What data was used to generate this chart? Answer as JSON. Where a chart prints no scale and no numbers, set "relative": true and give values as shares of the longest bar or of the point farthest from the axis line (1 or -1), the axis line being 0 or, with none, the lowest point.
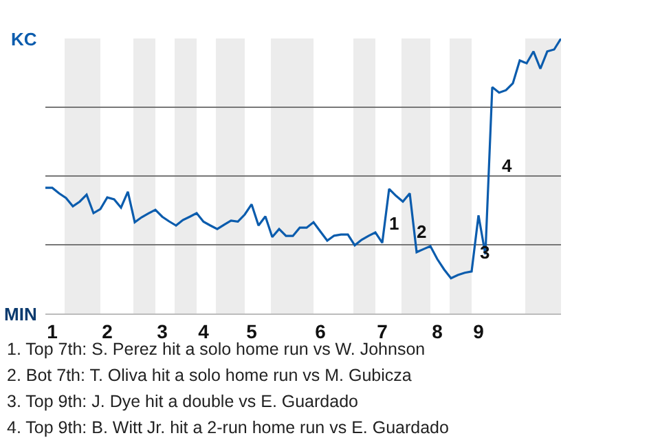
{
  "chart_data": {
    "type": "line",
    "relative": true,
    "categories": [
      null,
      "1",
      null,
      null,
      null,
      null,
      null,
      null,
      null,
      "2",
      null,
      null,
      null,
      null,
      null,
      null,
      null,
      "3",
      null,
      null,
      null,
      null,
      null,
      "4",
      null,
      null,
      null,
      null,
      null,
      null,
      "5",
      null,
      null,
      null,
      null,
      null,
      null,
      null,
      null,
      null,
      "6",
      null,
      null,
      null,
      null,
      null,
      null,
      null,
      null,
      "7",
      null,
      null,
      null,
      null,
      null,
      null,
      null,
      "8",
      null,
      null,
      null,
      null,
      null,
      "9",
      null,
      null,
      null,
      null,
      null,
      null,
      null,
      null,
      null,
      null,
      null,
      null
    ],
    "series": [
      {
        "color": "#0b5cad",
        "values": [
          0.457,
          0.457,
          0.437,
          0.42,
          0.39,
          0.407,
          0.432,
          0.365,
          0.38,
          0.422,
          0.415,
          0.385,
          0.443,
          0.332,
          0.35,
          0.364,
          0.377,
          0.352,
          0.335,
          0.32,
          0.34,
          0.352,
          0.365,
          0.334,
          0.32,
          0.307,
          0.323,
          0.338,
          0.334,
          0.36,
          0.397,
          0.32,
          0.353,
          0.278,
          0.307,
          0.282,
          0.282,
          0.312,
          0.312,
          0.332,
          0.298,
          0.265,
          0.283,
          0.287,
          0.287,
          0.248,
          0.268,
          0.282,
          0.295,
          0.257,
          0.453,
          0.428,
          0.407,
          0.437,
          0.223,
          0.234,
          0.245,
          0.198,
          0.16,
          0.128,
          0.14,
          0.148,
          0.153,
          0.357,
          0.215,
          0.823,
          0.803,
          0.812,
          0.837,
          0.92,
          0.91,
          0.953,
          0.89,
          0.953,
          0.96,
          1
        ]
      }
    ],
    "grid": "y",
    "marker": "none",
    "line_style": "solid",
    "annotations": [
      "KC",
      "MIN",
      "1",
      "2",
      "3",
      "4",
      "1. Top 7th: S. Perez hit a solo home run vs W. Johnson",
      "2. Bot 7th: T. Oliva hit a solo home run vs M. Gubicza",
      "3. Top 9th: J. Dye hit a double vs E. Guardado",
      "4. Top 9th: B. Witt Jr. hit a 2-run home run vs E. Guardado"
    ]
  }
}
